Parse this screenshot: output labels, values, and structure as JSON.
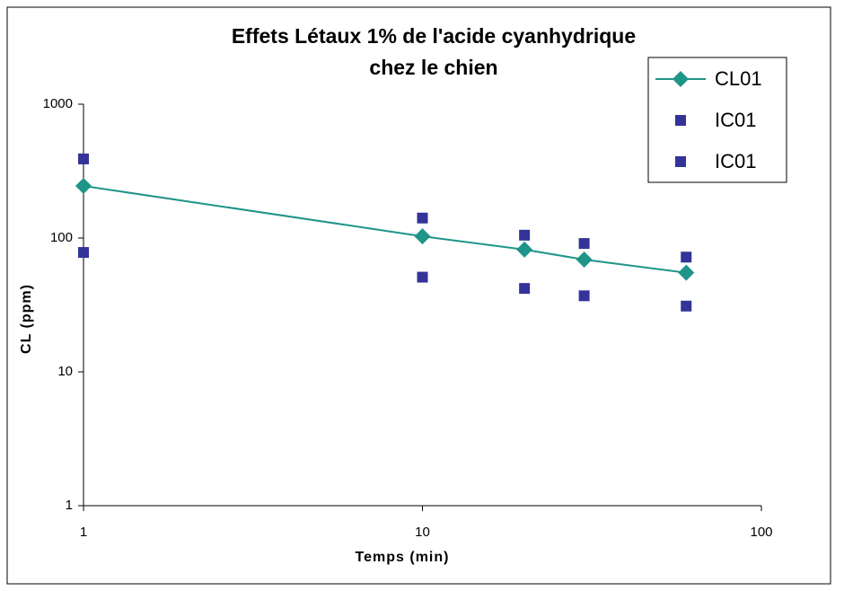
{
  "chart_data": {
    "type": "scatter",
    "title": [
      "Effets Létaux 1% de l'acide cyanhydrique",
      "chez le chien"
    ],
    "x_label": "Temps (min)",
    "y_label": "CL (ppm)",
    "x_log": true,
    "y_log": true,
    "xlim": [
      1,
      100
    ],
    "xticks": [
      1,
      10,
      100
    ],
    "ylim": [
      1,
      1000
    ],
    "yticks": [
      1,
      10,
      100,
      1000
    ],
    "legend": "upper right",
    "x": [
      1,
      10,
      20,
      30,
      60
    ],
    "series": [
      {
        "name": "CL01",
        "color": "#1f9488",
        "marker": "diamond",
        "line": true,
        "values": [
          245,
          103,
          82,
          69,
          55
        ]
      },
      {
        "name": "IC01",
        "color": "#333399",
        "marker": "square",
        "line": false,
        "values": [
          390,
          141,
          105,
          91,
          72
        ]
      },
      {
        "name": "IC01",
        "color": "#333399",
        "marker": "square",
        "line": false,
        "values": [
          78,
          51,
          42,
          37,
          31
        ]
      }
    ]
  }
}
